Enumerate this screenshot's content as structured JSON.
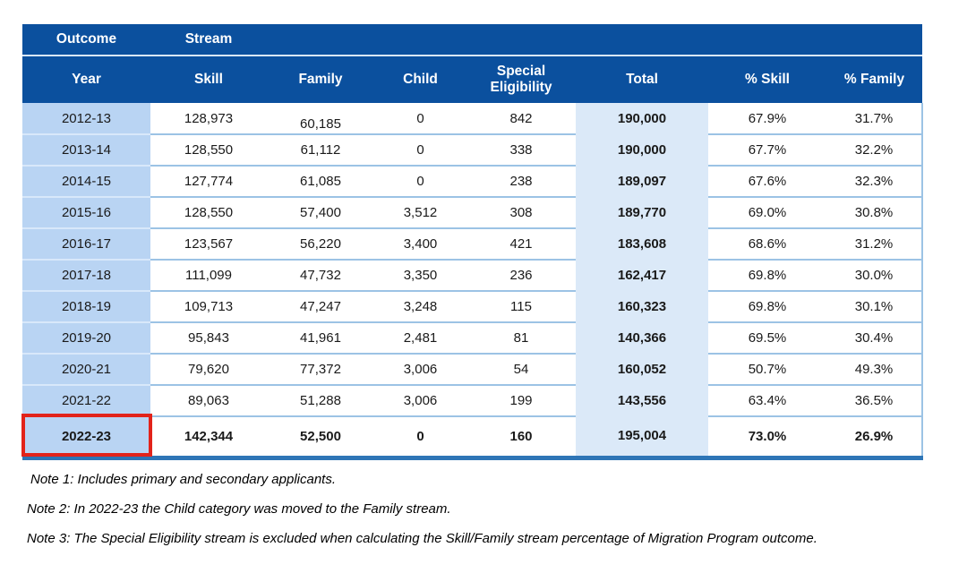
{
  "colors": {
    "header_bg": "#0b509e",
    "year_col_bg": "#b9d4f3",
    "total_col_bg": "#dbe9f8",
    "row_divider": "#9cc3e5",
    "bottom_bar": "#2e75b6",
    "highlight_box": "#e2231a"
  },
  "table": {
    "group_header": {
      "outcome": "Outcome",
      "stream": "Stream"
    },
    "columns": [
      "Year",
      "Skill",
      "Family",
      "Child",
      "Special Eligibility",
      "Total",
      "% Skill",
      "% Family"
    ],
    "rows": [
      [
        "2012-13",
        "128,973",
        "60,185",
        "0",
        "842",
        "190,000",
        "67.9%",
        "31.7%"
      ],
      [
        "2013-14",
        "128,550",
        "61,112",
        "0",
        "338",
        "190,000",
        "67.7%",
        "32.2%"
      ],
      [
        "2014-15",
        "127,774",
        "61,085",
        "0",
        "238",
        "189,097",
        "67.6%",
        "32.3%"
      ],
      [
        "2015-16",
        "128,550",
        "57,400",
        "3,512",
        "308",
        "189,770",
        "69.0%",
        "30.8%"
      ],
      [
        "2016-17",
        "123,567",
        "56,220",
        "3,400",
        "421",
        "183,608",
        "68.6%",
        "31.2%"
      ],
      [
        "2017-18",
        "111,099",
        "47,732",
        "3,350",
        "236",
        "162,417",
        "69.8%",
        "30.0%"
      ],
      [
        "2018-19",
        "109,713",
        "47,247",
        "3,248",
        "115",
        "160,323",
        "69.8%",
        "30.1%"
      ],
      [
        "2019-20",
        "95,843",
        "41,961",
        "2,481",
        "81",
        "140,366",
        "69.5%",
        "30.4%"
      ],
      [
        "2020-21",
        "79,620",
        "77,372",
        "3,006",
        "54",
        "160,052",
        "50.7%",
        "49.3%"
      ],
      [
        "2021-22",
        "89,063",
        "51,288",
        "3,006",
        "199",
        "143,556",
        "63.4%",
        "36.5%"
      ],
      [
        "2022-23",
        "142,344",
        "52,500",
        "0",
        "160",
        "195,004",
        "73.0%",
        "26.9%"
      ]
    ],
    "highlighted_year": "2022-23"
  },
  "notes": [
    "Note 1: Includes primary and secondary applicants.",
    "Note 2: In 2022-23 the Child category was moved to the Family stream.",
    "Note 3: The Special Eligibility stream is excluded when calculating the Skill/Family stream percentage of Migration Program outcome."
  ]
}
